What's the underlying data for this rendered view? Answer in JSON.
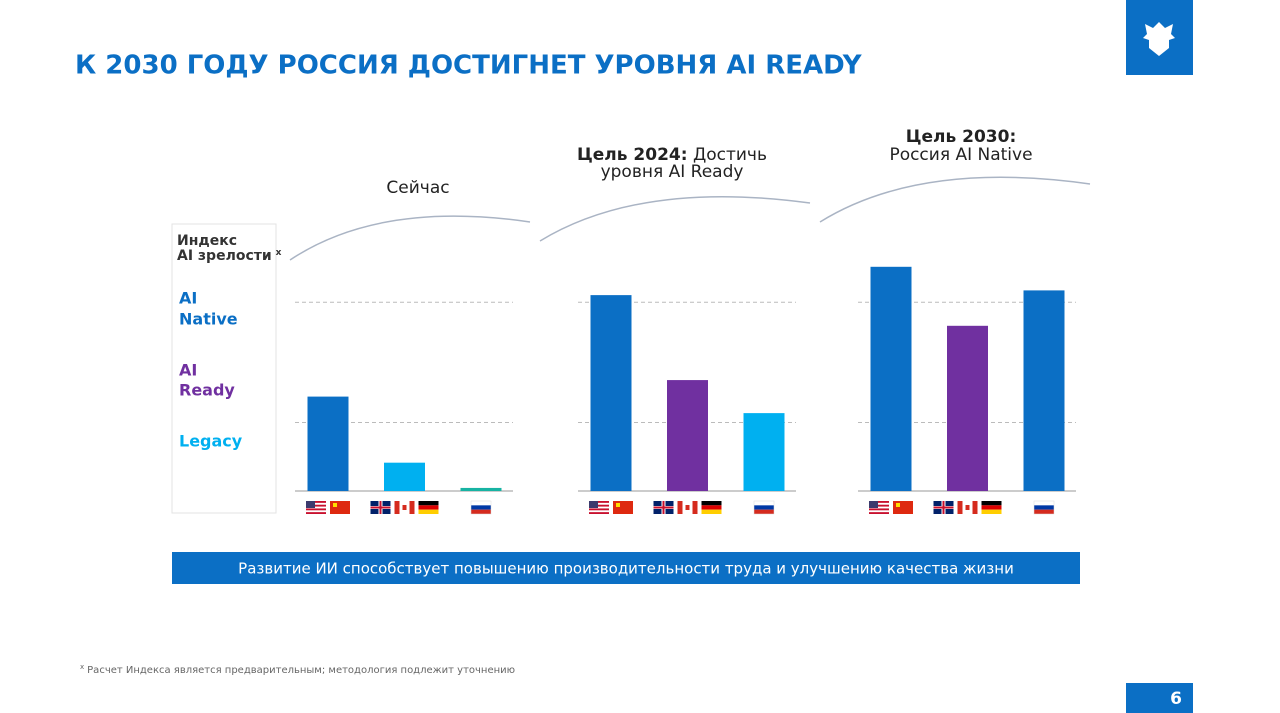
{
  "header": {
    "title": "К 2030 ГОДУ РОССИЯ ДОСТИГНЕТ УРОВНЯ AI READY",
    "page_number": "6"
  },
  "index_panel": {
    "title": [
      "Индекс",
      "AI зрелости"
    ],
    "note_mark": "x",
    "levels": [
      [
        "AI",
        "Native"
      ],
      [
        "AI",
        "Ready"
      ],
      [
        "Legacy"
      ]
    ]
  },
  "chart_data": [
    {
      "type": "bar",
      "title": "Сейчас",
      "categories": [
        null,
        null,
        null
      ],
      "values": [
        40,
        12,
        1.3
      ],
      "colors": [
        "#0b6fc5",
        "#00b0f0",
        "#17b3a3"
      ],
      "ylim": [
        0,
        100
      ],
      "grid_levels": [
        29,
        80
      ]
    },
    {
      "type": "bar",
      "title": "Цель 2024:",
      "subtitle": [
        "Достичь",
        "уровня AI Ready"
      ],
      "categories": [
        null,
        null,
        null
      ],
      "values": [
        83,
        47,
        33
      ],
      "colors": [
        "#0b6fc5",
        "#7030a0",
        "#00b0f0"
      ],
      "ylim": [
        0,
        100
      ],
      "grid_levels": [
        29,
        80
      ]
    },
    {
      "type": "bar",
      "title": "Цель 2030:",
      "subtitle": [
        "Россия AI Native"
      ],
      "categories": [
        null,
        null,
        null
      ],
      "values": [
        95,
        70,
        85
      ],
      "colors": [
        "#0b6fc5",
        "#7030a0",
        "#0b6fc5"
      ],
      "ylim": [
        0,
        100
      ],
      "grid_levels": [
        29,
        80
      ]
    }
  ],
  "banner": "Развитие ИИ способствует повышению производительности труда и улучшению качества жизни",
  "footnote": {
    "mark": "x",
    "text": "Расчет Индекса является предварительным; методология подлежит уточнению"
  }
}
